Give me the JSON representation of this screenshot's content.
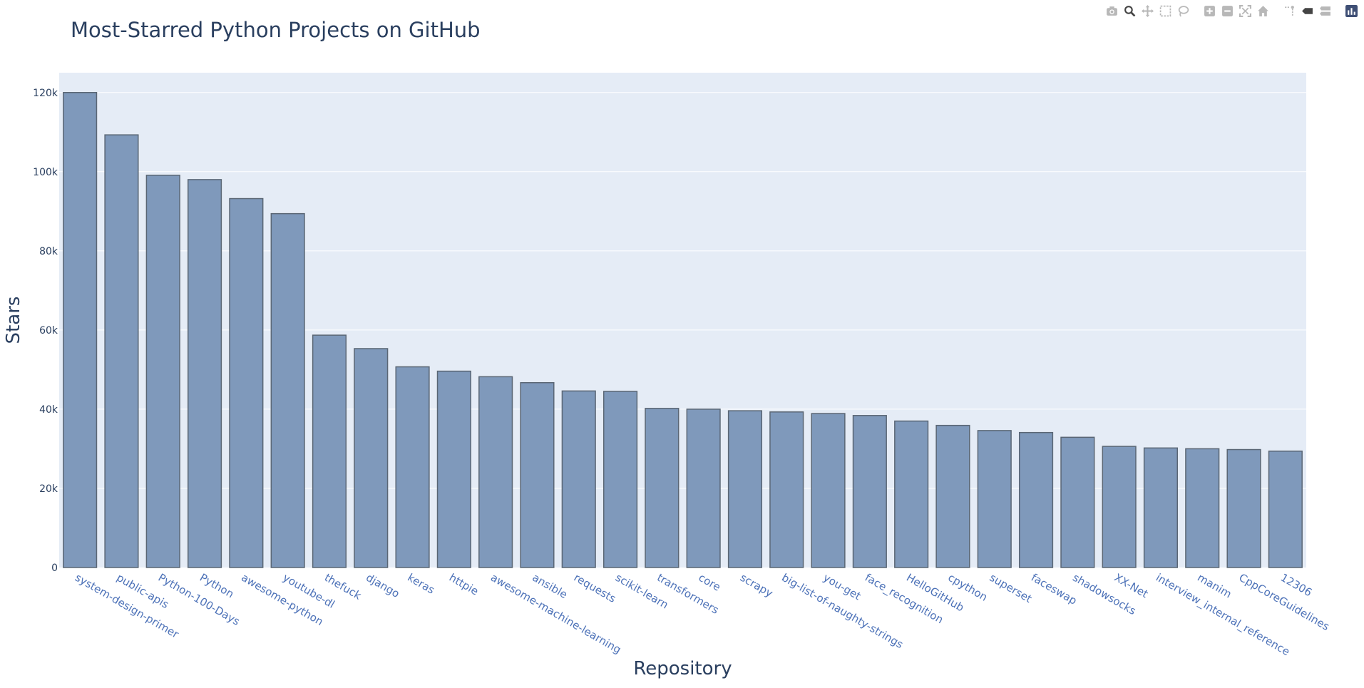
{
  "chart_data": {
    "type": "bar",
    "title": "Most-Starred Python Projects on GitHub",
    "xlabel": "Repository",
    "ylabel": "Stars",
    "ylim": [
      0,
      125000
    ],
    "yticks": [
      0,
      20000,
      40000,
      60000,
      80000,
      100000,
      120000
    ],
    "ytick_labels": [
      "0",
      "20k",
      "40k",
      "60k",
      "80k",
      "100k",
      "120k"
    ],
    "grid": true,
    "legend": "none",
    "bar_color": "#7f99bb",
    "bar_edge_color": "#5a6674",
    "plot_bg": "#e5ecf6",
    "categories": [
      "system-design-primer",
      "public-apis",
      "Python-100-Days",
      "Python",
      "awesome-python",
      "youtube-dl",
      "thefuck",
      "django",
      "keras",
      "httpie",
      "awesome-machine-learning",
      "ansible",
      "requests",
      "scikit-learn",
      "transformers",
      "core",
      "scrapy",
      "big-list-of-naughty-strings",
      "you-get",
      "face_recognition",
      "HelloGitHub",
      "cpython",
      "superset",
      "faceswap",
      "shadowsocks",
      "XX-Net",
      "interview_internal_reference",
      "manim",
      "CppCoreGuidelines",
      "12306"
    ],
    "values": [
      120000,
      109300,
      99100,
      98000,
      93200,
      89400,
      58700,
      55300,
      50700,
      49600,
      48200,
      46700,
      44600,
      44500,
      40200,
      40000,
      39600,
      39300,
      38900,
      38400,
      37000,
      35900,
      34600,
      34100,
      32900,
      30600,
      30200,
      30000,
      29800,
      29400
    ]
  },
  "modebar": {
    "icons": [
      "camera-icon",
      "zoom-icon",
      "pan-icon",
      "box-select-icon",
      "lasso-select-icon",
      "zoom-in-icon",
      "zoom-out-icon",
      "autoscale-icon",
      "reset-axes-icon",
      "spike-lines-icon",
      "hover-closest-icon",
      "hover-compare-icon",
      "plotly-logo-icon"
    ]
  }
}
